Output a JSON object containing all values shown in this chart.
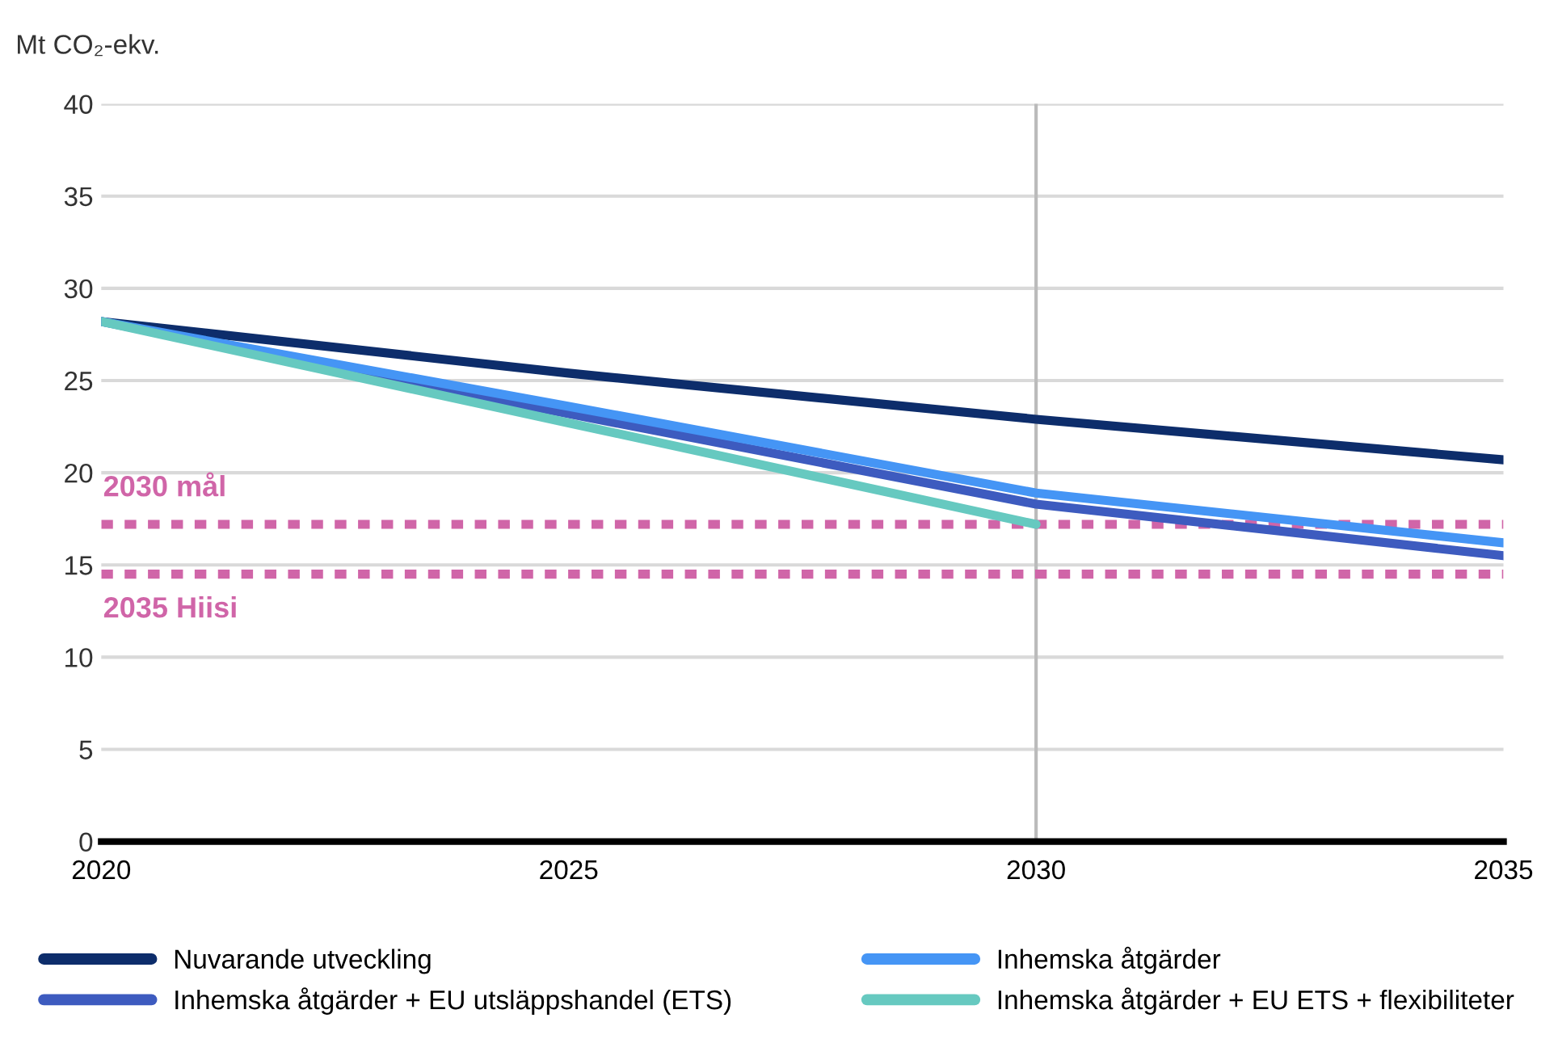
{
  "chart_data": {
    "type": "line",
    "ylabel": "Mt CO₂-ekv.",
    "x": [
      2020,
      2025,
      2030,
      2035
    ],
    "series": [
      {
        "name": "Nuvarande utveckling",
        "color": "#0d2d6b",
        "values": [
          28.2,
          25.4,
          22.9,
          20.7
        ]
      },
      {
        "name": "Inhemska åtgärder + EU utsläppshandel (ETS)",
        "color": "#3d5bbf",
        "values": [
          28.2,
          23.2,
          18.3,
          15.5
        ]
      },
      {
        "name": "Inhemska åtgärder",
        "color": "#4595f5",
        "values": [
          28.2,
          23.6,
          18.9,
          16.2
        ]
      },
      {
        "name": "Inhemska åtgärder + EU ETS + flexibiliteter",
        "color": "#66c9c0",
        "values": [
          28.2,
          22.7,
          17.2,
          null
        ]
      }
    ],
    "xlim": [
      2020,
      2035
    ],
    "xticks": [
      2020,
      2025,
      2030,
      2035
    ],
    "ylim": [
      0,
      40
    ],
    "yticks": [
      0,
      5,
      10,
      15,
      20,
      25,
      30,
      35,
      40
    ],
    "ref_lines": [
      {
        "axis": "y",
        "value": 17.2,
        "label": "2030 mål",
        "color": "#d065a8",
        "line_style": "dotted"
      },
      {
        "axis": "y",
        "value": 14.5,
        "label": "2035 Hiisi",
        "color": "#d065a8",
        "line_style": "dotted"
      },
      {
        "axis": "x",
        "value": 2030,
        "color": "#bbbbbb",
        "line_style": "solid"
      }
    ],
    "grid": "y",
    "legend": "bottom",
    "marker": "none",
    "line_style": "solid"
  }
}
